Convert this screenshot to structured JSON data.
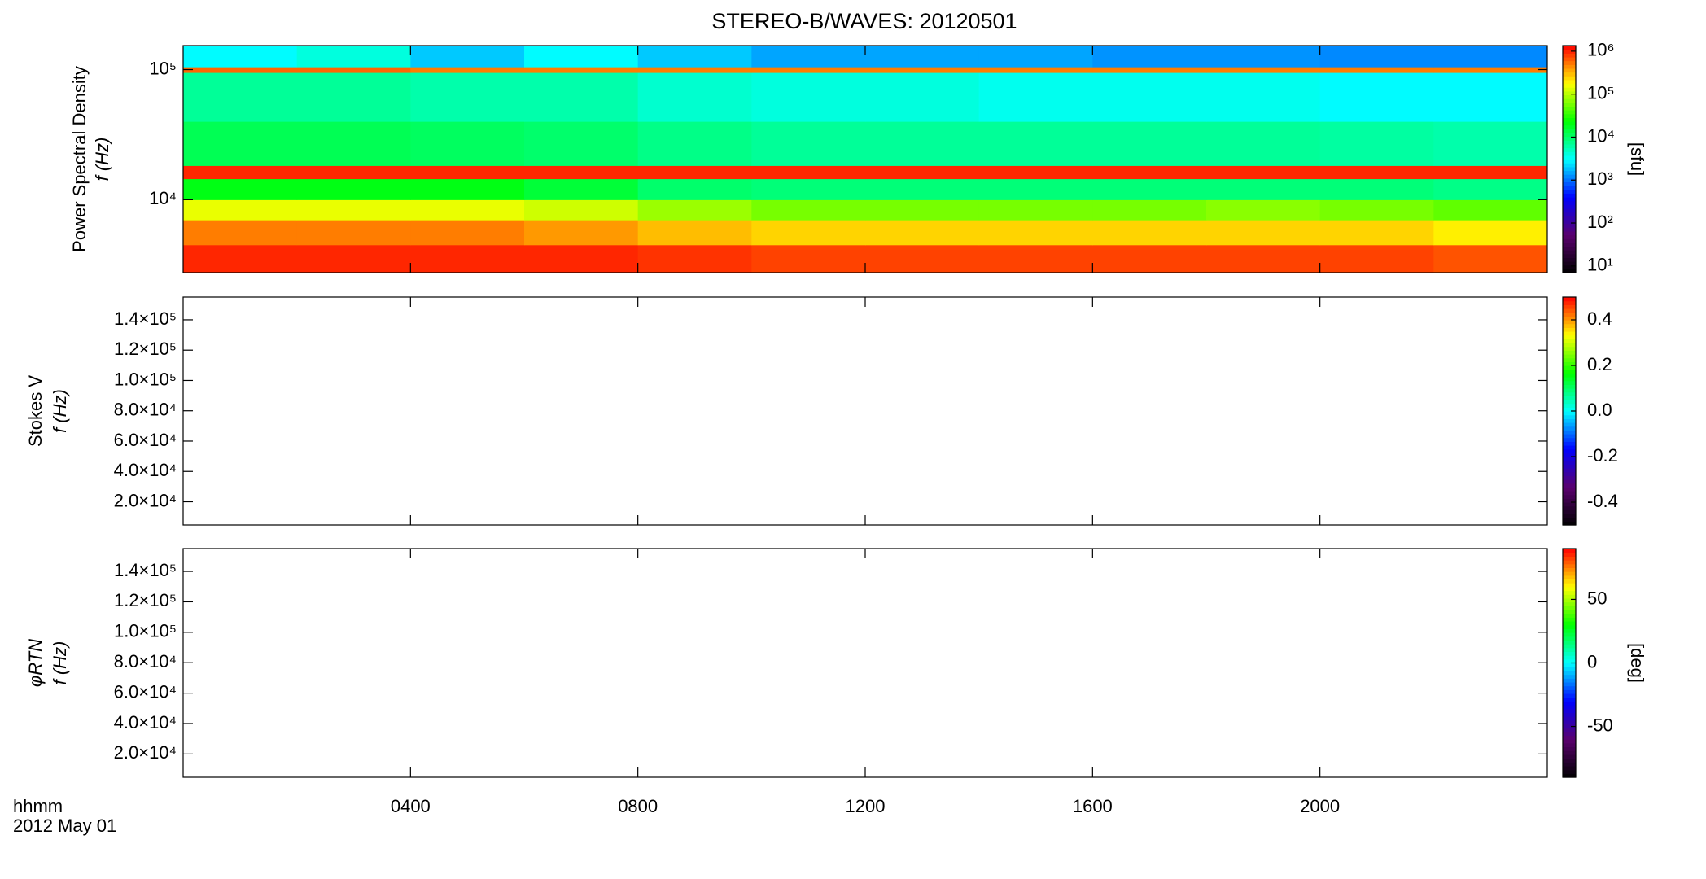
{
  "title": "STEREO-B/WAVES: 20120501",
  "x_label": "hhmm",
  "date_label": "2012 May 01",
  "time_axis": {
    "xlim": [
      0,
      24
    ],
    "xticks": [
      {
        "value": 4,
        "label": "0400"
      },
      {
        "value": 8,
        "label": "0800"
      },
      {
        "value": 12,
        "label": "1200"
      },
      {
        "value": 16,
        "label": "1600"
      },
      {
        "value": 20,
        "label": "2000"
      }
    ]
  },
  "colormap": [
    "#000000",
    "#5a006e",
    "#0000ff",
    "#00ffff",
    "#00ff00",
    "#ffff00",
    "#ff0000"
  ],
  "chart_data": [
    {
      "type": "heatmap",
      "ylabel": [
        "Power Spectral Density",
        "f (Hz)"
      ],
      "log_y": true,
      "ylim": [
        2750,
        153000
      ],
      "yticks": [
        {
          "value": 10000,
          "label": "10⁴"
        },
        {
          "value": 100000,
          "label": "10⁵"
        }
      ],
      "x_edges": [
        0,
        2,
        4,
        6,
        8,
        10,
        12,
        14,
        16,
        18,
        20,
        22,
        24
      ],
      "y_edges": [
        2750,
        4500,
        7000,
        10000,
        14500,
        18300,
        40000,
        95000,
        105000,
        153000
      ],
      "z": [
        [
          1000000,
          1000000,
          1000000,
          1000000,
          900000,
          800000,
          800000,
          800000,
          800000,
          800000,
          800000,
          700000
        ],
        [
          500000,
          500000,
          500000,
          400000,
          300000,
          250000,
          250000,
          250000,
          250000,
          250000,
          250000,
          200000
        ],
        [
          150000,
          150000,
          150000,
          120000,
          80000,
          60000,
          60000,
          60000,
          60000,
          70000,
          60000,
          50000
        ],
        [
          20000,
          20000,
          20000,
          15000,
          10000,
          9000,
          9000,
          9000,
          9000,
          9000,
          9000,
          8000
        ],
        [
          1000000,
          1000000,
          1000000,
          1000000,
          1000000,
          1000000,
          1000000,
          1000000,
          1000000,
          1000000,
          1000000,
          1000000
        ],
        [
          12000,
          12000,
          11000,
          10000,
          8000,
          7000,
          7000,
          7000,
          7000,
          7000,
          6500,
          6000
        ],
        [
          7000,
          7000,
          6000,
          6000,
          4500,
          4000,
          4000,
          3500,
          3500,
          3500,
          3000,
          3000
        ],
        [
          600000,
          600000,
          500000,
          500000,
          500000,
          500000,
          500000,
          500000,
          500000,
          500000,
          500000,
          500000
        ],
        [
          3000,
          4000,
          2000,
          3000,
          2000,
          1500,
          1500,
          1500,
          1300,
          1300,
          1200,
          1200
        ]
      ],
      "colorbar": {
        "log": true,
        "clim": [
          7,
          1350000
        ],
        "ticks": [
          {
            "value": 10,
            "label": "10¹"
          },
          {
            "value": 100,
            "label": "10²"
          },
          {
            "value": 1000,
            "label": "10³"
          },
          {
            "value": 10000,
            "label": "10⁴"
          },
          {
            "value": 100000,
            "label": "10⁵"
          },
          {
            "value": 1000000,
            "label": "10⁶"
          }
        ],
        "label": "[sfu]"
      }
    },
    {
      "type": "heatmap",
      "ylabel": [
        "Stokes V",
        "f (Hz)"
      ],
      "log_y": false,
      "ylim": [
        4700,
        155000
      ],
      "yticks": [
        {
          "value": 20000,
          "label": "2.0×10⁴"
        },
        {
          "value": 40000,
          "label": "4.0×10⁴"
        },
        {
          "value": 60000,
          "label": "6.0×10⁴"
        },
        {
          "value": 80000,
          "label": "8.0×10⁴"
        },
        {
          "value": 100000,
          "label": "1.0×10⁵"
        },
        {
          "value": 120000,
          "label": "1.2×10⁵"
        },
        {
          "value": 140000,
          "label": "1.4×10⁵"
        }
      ],
      "colorbar": {
        "log": false,
        "clim": [
          -0.5,
          0.5
        ],
        "ticks": [
          -0.4,
          -0.2,
          {
            "value": 0,
            "label": "0.0"
          },
          0.2,
          0.4
        ]
      }
    },
    {
      "type": "heatmap",
      "ylabel": [
        "φRTN",
        "f (Hz)"
      ],
      "log_y": false,
      "ylim": [
        4700,
        155000
      ],
      "yticks": [
        {
          "value": 20000,
          "label": "2.0×10⁴"
        },
        {
          "value": 40000,
          "label": "4.0×10⁴"
        },
        {
          "value": 60000,
          "label": "6.0×10⁴"
        },
        {
          "value": 80000,
          "label": "8.0×10⁴"
        },
        {
          "value": 100000,
          "label": "1.0×10⁵"
        },
        {
          "value": 120000,
          "label": "1.2×10⁵"
        },
        {
          "value": 140000,
          "label": "1.4×10⁵"
        }
      ],
      "colorbar": {
        "log": false,
        "clim": [
          -90,
          90
        ],
        "ticks": [
          -50,
          0,
          50
        ],
        "label": "[deg]"
      }
    }
  ]
}
